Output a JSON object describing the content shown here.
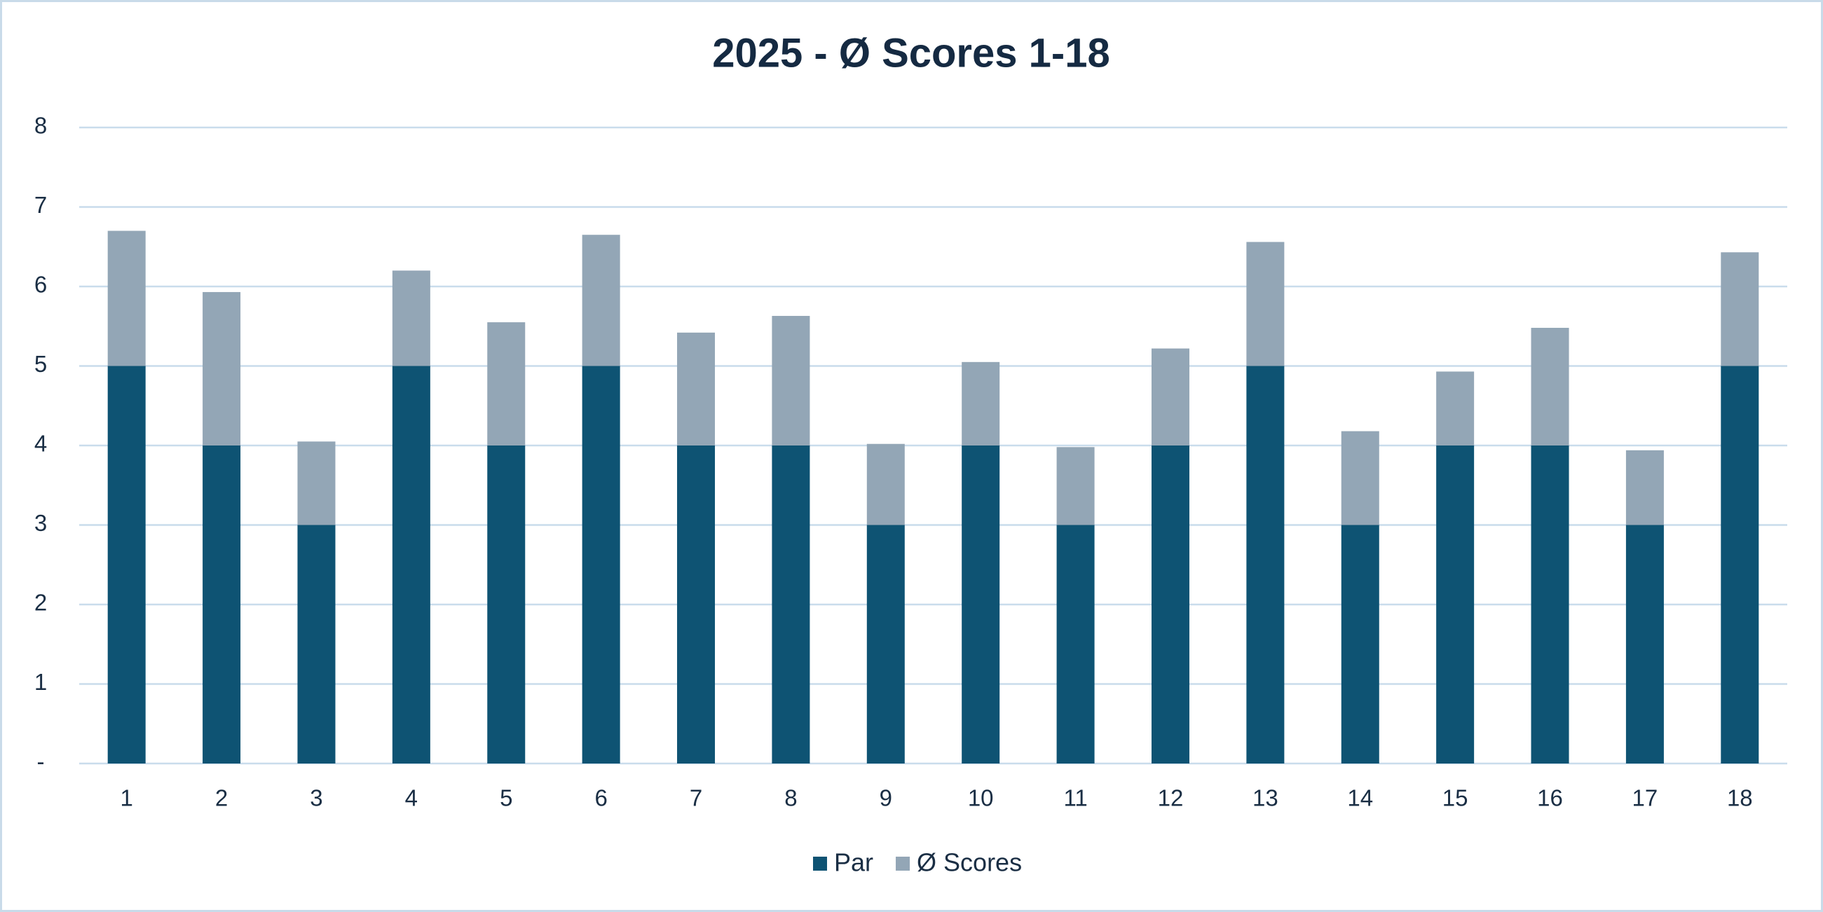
{
  "chart_data": {
    "type": "stacked_bar",
    "title": "2025 - Ø Scores 1-18",
    "categories": [
      "1",
      "2",
      "3",
      "4",
      "5",
      "6",
      "7",
      "8",
      "9",
      "10",
      "11",
      "12",
      "13",
      "14",
      "15",
      "16",
      "17",
      "18"
    ],
    "series": [
      {
        "name": "Par",
        "color": "#0e5373",
        "values": [
          5,
          4,
          3,
          5,
          4,
          5,
          4,
          4,
          3,
          4,
          3,
          4,
          5,
          3,
          4,
          4,
          3,
          5
        ]
      },
      {
        "name": "Ø Scores",
        "color": "#93a6b6",
        "values": [
          1.7,
          1.93,
          1.05,
          1.2,
          1.55,
          1.65,
          1.42,
          1.63,
          1.02,
          1.05,
          0.98,
          1.22,
          1.56,
          1.18,
          0.93,
          1.48,
          0.94,
          1.43
        ]
      }
    ],
    "ylim": [
      0,
      8
    ],
    "yticks": [
      {
        "value": 0,
        "label": "-"
      },
      1,
      2,
      3,
      4,
      5,
      6,
      7,
      8
    ],
    "grid": true,
    "legend": "bottom"
  }
}
